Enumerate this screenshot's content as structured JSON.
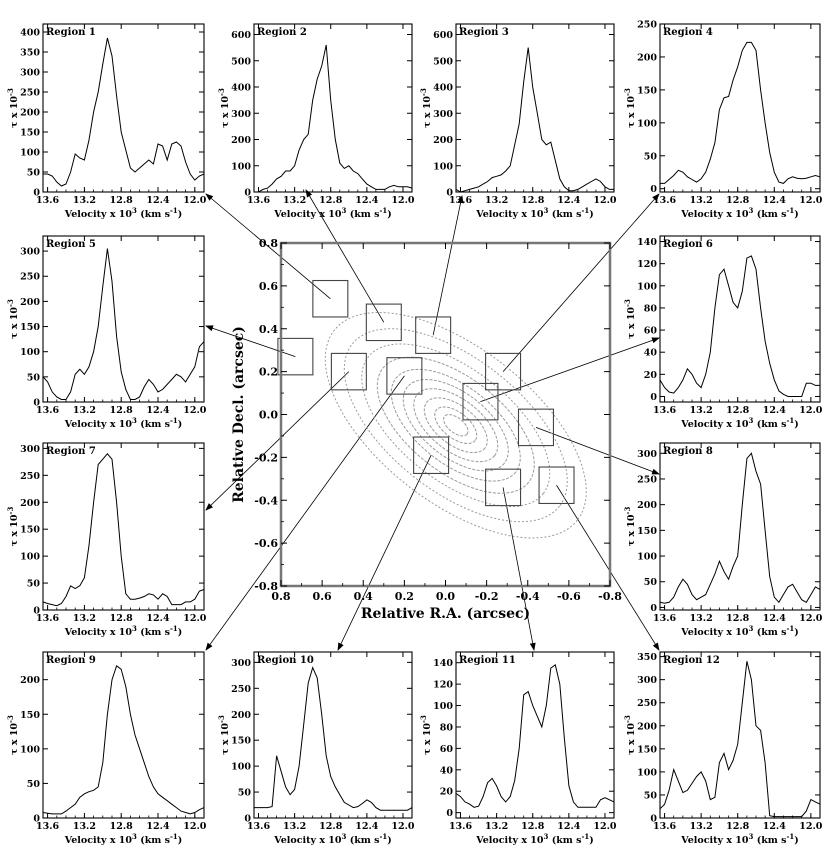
{
  "figure": {
    "panel_xlabel_main": "Velocity x 10",
    "panel_xlabel_exp": "3",
    "panel_xlabel_unit": "(km s",
    "panel_xlabel_unit_exp": "-1",
    "panel_xlabel_close": ")",
    "panel_ylabel_main": "τ x 10",
    "panel_ylabel_exp": "-3"
  },
  "chart_data": [
    {
      "type": "line",
      "title": "Region 1",
      "x": [
        13.65,
        13.6,
        13.55,
        13.5,
        13.45,
        13.4,
        13.35,
        13.3,
        13.25,
        13.2,
        13.15,
        13.1,
        13.05,
        13.0,
        12.95,
        12.9,
        12.85,
        12.8,
        12.75,
        12.7,
        12.65,
        12.6,
        12.55,
        12.5,
        12.45,
        12.4,
        12.35,
        12.3,
        12.25,
        12.2,
        12.15,
        12.1,
        12.05,
        12.0,
        11.95,
        11.9
      ],
      "y": [
        45,
        45,
        40,
        25,
        15,
        20,
        50,
        95,
        85,
        80,
        130,
        200,
        250,
        320,
        385,
        340,
        240,
        150,
        105,
        60,
        50,
        60,
        70,
        80,
        70,
        120,
        115,
        80,
        120,
        125,
        115,
        75,
        45,
        30,
        40,
        45
      ],
      "xlim": [
        13.65,
        11.9
      ],
      "xticks": [
        13.6,
        13.2,
        12.8,
        12.4,
        12.0
      ],
      "ylim": [
        0,
        420
      ],
      "yticks": [
        0,
        50,
        100,
        150,
        200,
        250,
        300,
        350,
        400
      ]
    },
    {
      "type": "line",
      "title": "Region 2",
      "x": [
        13.65,
        13.6,
        13.55,
        13.5,
        13.45,
        13.4,
        13.35,
        13.3,
        13.25,
        13.2,
        13.15,
        13.1,
        13.05,
        13.0,
        12.95,
        12.9,
        12.85,
        12.8,
        12.75,
        12.7,
        12.65,
        12.6,
        12.55,
        12.5,
        12.45,
        12.4,
        12.35,
        12.3,
        12.25,
        12.2,
        12.15,
        12.1,
        12.05,
        12.0,
        11.95,
        11.9
      ],
      "y": [
        0,
        0,
        10,
        15,
        30,
        50,
        60,
        80,
        80,
        100,
        160,
        200,
        220,
        350,
        430,
        480,
        560,
        350,
        200,
        110,
        90,
        100,
        80,
        70,
        50,
        30,
        20,
        10,
        10,
        10,
        20,
        25,
        20,
        20,
        20,
        15
      ],
      "xlim": [
        13.65,
        11.9
      ],
      "xticks": [
        13.6,
        13.2,
        12.8,
        12.4,
        12.0
      ],
      "ylim": [
        0,
        640
      ],
      "yticks": [
        0,
        100,
        200,
        300,
        400,
        500,
        600
      ]
    },
    {
      "type": "line",
      "title": "Region 3",
      "x": [
        13.65,
        13.6,
        13.55,
        13.5,
        13.45,
        13.4,
        13.35,
        13.3,
        13.25,
        13.2,
        13.15,
        13.1,
        13.05,
        13.0,
        12.95,
        12.9,
        12.85,
        12.8,
        12.75,
        12.7,
        12.65,
        12.6,
        12.55,
        12.5,
        12.45,
        12.4,
        12.35,
        12.3,
        12.25,
        12.2,
        12.15,
        12.1,
        12.05,
        12.0,
        11.95,
        11.9
      ],
      "y": [
        10,
        0,
        5,
        10,
        15,
        20,
        30,
        40,
        55,
        60,
        65,
        80,
        100,
        180,
        260,
        420,
        550,
        400,
        300,
        200,
        180,
        190,
        120,
        50,
        20,
        5,
        5,
        10,
        20,
        30,
        40,
        50,
        40,
        20,
        10,
        10
      ],
      "xlim": [
        13.65,
        11.9
      ],
      "xticks": [
        13.6,
        13.2,
        12.8,
        12.4,
        12.0
      ],
      "ylim": [
        0,
        640
      ],
      "yticks": [
        0,
        100,
        200,
        300,
        400,
        500,
        600
      ]
    },
    {
      "type": "line",
      "title": "Region 4",
      "x": [
        13.65,
        13.6,
        13.55,
        13.5,
        13.45,
        13.4,
        13.35,
        13.3,
        13.25,
        13.2,
        13.15,
        13.1,
        13.05,
        13.0,
        12.95,
        12.9,
        12.85,
        12.8,
        12.75,
        12.7,
        12.65,
        12.6,
        12.55,
        12.5,
        12.45,
        12.4,
        12.35,
        12.3,
        12.25,
        12.2,
        12.15,
        12.1,
        12.05,
        12.0,
        11.95,
        11.9
      ],
      "y": [
        8,
        8,
        14,
        20,
        28,
        25,
        18,
        14,
        10,
        15,
        25,
        45,
        70,
        120,
        138,
        140,
        165,
        185,
        210,
        222,
        222,
        210,
        150,
        100,
        55,
        25,
        10,
        8,
        15,
        18,
        16,
        15,
        16,
        18,
        20,
        18
      ],
      "xlim": [
        13.65,
        11.9
      ],
      "xticks": [
        13.6,
        13.2,
        12.8,
        12.4,
        12.0
      ],
      "ylim": [
        -5,
        250
      ],
      "yticks": [
        0,
        50,
        100,
        150,
        200,
        250
      ]
    },
    {
      "type": "line",
      "title": "Region 5",
      "x": [
        13.65,
        13.6,
        13.55,
        13.5,
        13.45,
        13.4,
        13.35,
        13.3,
        13.25,
        13.2,
        13.15,
        13.1,
        13.05,
        13.0,
        12.95,
        12.9,
        12.85,
        12.8,
        12.75,
        12.7,
        12.65,
        12.6,
        12.55,
        12.5,
        12.45,
        12.4,
        12.35,
        12.3,
        12.25,
        12.2,
        12.15,
        12.1,
        12.05,
        12.0,
        11.95,
        11.9
      ],
      "y": [
        50,
        40,
        20,
        10,
        5,
        5,
        20,
        55,
        65,
        55,
        70,
        100,
        150,
        230,
        305,
        240,
        130,
        60,
        25,
        5,
        5,
        10,
        30,
        45,
        35,
        20,
        25,
        35,
        45,
        55,
        50,
        40,
        55,
        70,
        110,
        120
      ],
      "xlim": [
        13.65,
        11.9
      ],
      "xticks": [
        13.6,
        13.2,
        12.8,
        12.4,
        12.0
      ],
      "ylim": [
        0,
        330
      ],
      "yticks": [
        0,
        50,
        100,
        150,
        200,
        250,
        300
      ]
    },
    {
      "type": "line",
      "title": "Region 6",
      "x": [
        13.65,
        13.6,
        13.55,
        13.5,
        13.45,
        13.4,
        13.35,
        13.3,
        13.25,
        13.2,
        13.15,
        13.1,
        13.05,
        13.0,
        12.95,
        12.9,
        12.85,
        12.8,
        12.75,
        12.7,
        12.65,
        12.6,
        12.55,
        12.5,
        12.45,
        12.4,
        12.35,
        12.3,
        12.25,
        12.2,
        12.15,
        12.1,
        12.05,
        12.0,
        11.95,
        11.9
      ],
      "y": [
        15,
        8,
        4,
        3,
        8,
        15,
        25,
        20,
        12,
        8,
        20,
        40,
        80,
        110,
        115,
        100,
        85,
        80,
        95,
        125,
        127,
        115,
        80,
        50,
        30,
        15,
        5,
        2,
        0,
        0,
        0,
        0,
        12,
        12,
        10,
        10
      ],
      "xlim": [
        13.65,
        11.9
      ],
      "xticks": [
        13.6,
        13.2,
        12.8,
        12.4,
        12.0
      ],
      "ylim": [
        -5,
        145
      ],
      "yticks": [
        0,
        20,
        40,
        60,
        80,
        100,
        120,
        140
      ]
    },
    {
      "type": "line",
      "title": "Region 7",
      "x": [
        13.65,
        13.6,
        13.55,
        13.5,
        13.45,
        13.4,
        13.35,
        13.3,
        13.25,
        13.2,
        13.15,
        13.1,
        13.05,
        13.0,
        12.95,
        12.9,
        12.85,
        12.8,
        12.75,
        12.7,
        12.65,
        12.6,
        12.55,
        12.5,
        12.45,
        12.4,
        12.35,
        12.3,
        12.25,
        12.2,
        12.15,
        12.1,
        12.05,
        12.0,
        11.95,
        11.9
      ],
      "y": [
        15,
        12,
        10,
        8,
        12,
        25,
        45,
        40,
        45,
        60,
        120,
        200,
        270,
        280,
        290,
        280,
        200,
        100,
        30,
        20,
        20,
        22,
        25,
        30,
        28,
        20,
        30,
        25,
        10,
        10,
        10,
        15,
        15,
        20,
        35,
        38
      ],
      "xlim": [
        13.65,
        11.9
      ],
      "xticks": [
        13.6,
        13.2,
        12.8,
        12.4,
        12.0
      ],
      "ylim": [
        0,
        310
      ],
      "yticks": [
        0,
        50,
        100,
        150,
        200,
        250,
        300
      ]
    },
    {
      "type": "line",
      "title": "Region 8",
      "x": [
        13.65,
        13.6,
        13.55,
        13.5,
        13.45,
        13.4,
        13.35,
        13.3,
        13.25,
        13.2,
        13.15,
        13.1,
        13.05,
        13.0,
        12.95,
        12.9,
        12.85,
        12.8,
        12.75,
        12.7,
        12.65,
        12.6,
        12.55,
        12.5,
        12.45,
        12.4,
        12.35,
        12.3,
        12.25,
        12.2,
        12.15,
        12.1,
        12.05,
        12.0,
        11.95,
        11.9
      ],
      "y": [
        10,
        8,
        10,
        20,
        40,
        55,
        45,
        25,
        15,
        20,
        25,
        45,
        65,
        90,
        70,
        55,
        80,
        100,
        200,
        290,
        300,
        265,
        240,
        150,
        60,
        20,
        10,
        25,
        40,
        45,
        30,
        15,
        10,
        25,
        40,
        35
      ],
      "xlim": [
        13.65,
        11.9
      ],
      "xticks": [
        13.6,
        13.2,
        12.8,
        12.4,
        12.0
      ],
      "ylim": [
        -5,
        320
      ],
      "yticks": [
        0,
        50,
        100,
        150,
        200,
        250,
        300
      ]
    },
    {
      "type": "line",
      "title": "Region 9",
      "x": [
        13.65,
        13.6,
        13.55,
        13.5,
        13.45,
        13.4,
        13.35,
        13.3,
        13.25,
        13.2,
        13.15,
        13.1,
        13.05,
        13.0,
        12.95,
        12.9,
        12.85,
        12.8,
        12.75,
        12.7,
        12.65,
        12.6,
        12.55,
        12.5,
        12.45,
        12.4,
        12.35,
        12.3,
        12.25,
        12.2,
        12.15,
        12.1,
        12.05,
        12.0,
        11.95,
        11.9
      ],
      "y": [
        8,
        7,
        6,
        6,
        6,
        10,
        15,
        20,
        30,
        35,
        38,
        40,
        45,
        80,
        150,
        200,
        220,
        215,
        190,
        150,
        120,
        100,
        80,
        60,
        45,
        35,
        30,
        25,
        20,
        15,
        10,
        8,
        6,
        8,
        12,
        15
      ],
      "xlim": [
        13.65,
        11.9
      ],
      "xticks": [
        13.6,
        13.2,
        12.8,
        12.4,
        12.0
      ],
      "ylim": [
        0,
        240
      ],
      "yticks": [
        0,
        50,
        100,
        150,
        200
      ]
    },
    {
      "type": "line",
      "title": "Region 10",
      "x": [
        13.65,
        13.6,
        13.55,
        13.5,
        13.45,
        13.4,
        13.35,
        13.3,
        13.25,
        13.2,
        13.15,
        13.1,
        13.05,
        13.0,
        12.95,
        12.9,
        12.85,
        12.8,
        12.75,
        12.7,
        12.65,
        12.6,
        12.55,
        12.5,
        12.45,
        12.4,
        12.35,
        12.3,
        12.25,
        12.2,
        12.15,
        12.1,
        12.05,
        12.0,
        11.95,
        11.9
      ],
      "y": [
        20,
        20,
        20,
        20,
        22,
        120,
        90,
        60,
        45,
        55,
        100,
        180,
        260,
        290,
        270,
        200,
        120,
        80,
        60,
        45,
        30,
        25,
        20,
        22,
        28,
        35,
        30,
        20,
        15,
        15,
        15,
        15,
        15,
        15,
        15,
        20
      ],
      "xlim": [
        13.65,
        11.9
      ],
      "xticks": [
        13.6,
        13.2,
        12.8,
        12.4,
        12.0
      ],
      "ylim": [
        0,
        320
      ],
      "yticks": [
        0,
        50,
        100,
        150,
        200,
        250,
        300
      ]
    },
    {
      "type": "line",
      "title": "Region 11",
      "x": [
        13.65,
        13.6,
        13.55,
        13.5,
        13.45,
        13.4,
        13.35,
        13.3,
        13.25,
        13.2,
        13.15,
        13.1,
        13.05,
        13.0,
        12.95,
        12.9,
        12.85,
        12.8,
        12.75,
        12.7,
        12.65,
        12.6,
        12.55,
        12.5,
        12.45,
        12.4,
        12.35,
        12.3,
        12.25,
        12.2,
        12.15,
        12.1,
        12.05,
        12.0,
        11.95,
        11.9
      ],
      "y": [
        18,
        15,
        10,
        8,
        5,
        6,
        15,
        28,
        32,
        25,
        15,
        10,
        15,
        30,
        60,
        110,
        113,
        100,
        90,
        80,
        100,
        135,
        138,
        120,
        70,
        25,
        10,
        5,
        5,
        5,
        5,
        5,
        12,
        14,
        12,
        10
      ],
      "xlim": [
        13.65,
        11.9
      ],
      "xticks": [
        13.6,
        13.2,
        12.8,
        12.4,
        12.0
      ],
      "ylim": [
        -5,
        150
      ],
      "yticks": [
        0,
        20,
        40,
        60,
        80,
        100,
        120,
        140
      ]
    },
    {
      "type": "line",
      "title": "Region 12",
      "x": [
        13.65,
        13.6,
        13.55,
        13.5,
        13.45,
        13.4,
        13.35,
        13.3,
        13.25,
        13.2,
        13.15,
        13.1,
        13.05,
        13.0,
        12.95,
        12.9,
        12.85,
        12.8,
        12.75,
        12.7,
        12.65,
        12.6,
        12.55,
        12.5,
        12.45,
        12.4,
        12.35,
        12.3,
        12.25,
        12.2,
        12.15,
        12.1,
        12.05,
        12.0,
        11.95,
        11.9
      ],
      "y": [
        20,
        30,
        60,
        105,
        80,
        55,
        60,
        75,
        90,
        100,
        80,
        40,
        45,
        120,
        140,
        105,
        125,
        160,
        250,
        340,
        300,
        200,
        190,
        120,
        5,
        3,
        3,
        3,
        3,
        3,
        3,
        3,
        15,
        40,
        35,
        30
      ],
      "xlim": [
        13.65,
        11.9
      ],
      "xticks": [
        13.6,
        13.2,
        12.8,
        12.4,
        12.0
      ],
      "ylim": [
        0,
        360
      ],
      "yticks": [
        0,
        50,
        100,
        150,
        200,
        250,
        300,
        350
      ]
    },
    {
      "type": "contour",
      "xlabel": "Relative R.A. (arcsec)",
      "ylabel": "Relative Decl. (arcsec)",
      "xlim": [
        0.8,
        -0.8
      ],
      "ylim": [
        -0.8,
        0.8
      ],
      "xticks": [
        0.8,
        0.6,
        0.4,
        0.2,
        0.0,
        -0.2,
        -0.4,
        -0.6,
        -0.8
      ],
      "yticks": [
        0.8,
        0.6,
        0.4,
        0.2,
        0.0,
        -0.2,
        -0.4,
        -0.6,
        -0.8
      ],
      "tick_labels": [
        "0.8",
        "0.6",
        "0.4",
        "0.2",
        "0.0",
        "-0.2",
        "-0.4",
        "-0.6",
        "-0.8"
      ],
      "contour_center": [
        -0.05,
        -0.05
      ],
      "contour_angle_deg": -38,
      "contour_semi_axes": [
        [
          0.75,
          0.36
        ],
        [
          0.64,
          0.31
        ],
        [
          0.54,
          0.26
        ],
        [
          0.45,
          0.22
        ],
        [
          0.37,
          0.18
        ],
        [
          0.3,
          0.15
        ],
        [
          0.24,
          0.12
        ],
        [
          0.18,
          0.09
        ],
        [
          0.12,
          0.06
        ],
        [
          0.07,
          0.035
        ]
      ],
      "regions": [
        {
          "label": "1",
          "x": 0.56,
          "y": 0.54
        },
        {
          "label": "2",
          "x": 0.3,
          "y": 0.43
        },
        {
          "label": "3",
          "x": 0.06,
          "y": 0.37
        },
        {
          "label": "4",
          "x": -0.28,
          "y": 0.2
        },
        {
          "label": "5",
          "x": 0.73,
          "y": 0.27
        },
        {
          "label": "6",
          "x": -0.17,
          "y": 0.06
        },
        {
          "label": "7",
          "x": 0.47,
          "y": 0.2
        },
        {
          "label": "8",
          "x": -0.44,
          "y": -0.06
        },
        {
          "label": "9",
          "x": 0.2,
          "y": 0.18
        },
        {
          "label": "10",
          "x": 0.07,
          "y": -0.19
        },
        {
          "label": "11",
          "x": -0.28,
          "y": -0.34
        },
        {
          "label": "12",
          "x": -0.54,
          "y": -0.33
        }
      ]
    }
  ]
}
